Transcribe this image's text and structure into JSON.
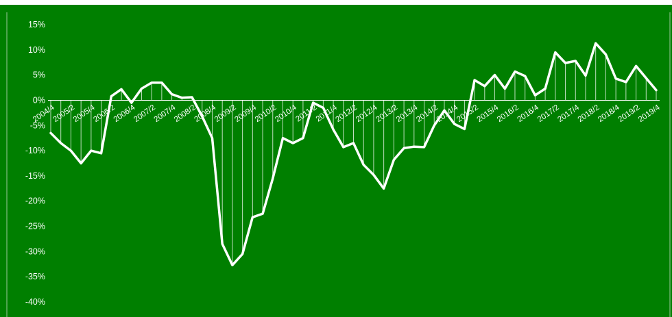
{
  "colors": {
    "background": "#007f00",
    "line": "#ffffff",
    "drop_lines": "#ffffff",
    "header_band": "#ffffff",
    "header_text": "#19a219"
  },
  "chart_data": {
    "type": "line",
    "title": "",
    "xlabel": "",
    "ylabel": "",
    "ylim": [
      -40,
      15
    ],
    "y_ticks": [
      "15%",
      "10%",
      "5%",
      "0%",
      "-5%",
      "-10%",
      "-15%",
      "-20%",
      "-25%",
      "-30%",
      "-35%",
      "-40%"
    ],
    "y_tick_values": [
      15,
      10,
      5,
      0,
      -5,
      -10,
      -15,
      -20,
      -25,
      -30,
      -35,
      -40
    ],
    "grid": false,
    "drop_lines": true,
    "x": [
      "2004/4",
      "2005/1",
      "2005/2",
      "2005/3",
      "2005/4",
      "2006/1",
      "2006/2",
      "2006/3",
      "2006/4",
      "2007/1",
      "2007/2",
      "2007/3",
      "2007/4",
      "2008/1",
      "2008/2",
      "2008/3",
      "2008/4",
      "2009/1",
      "2009/2",
      "2009/3",
      "2009/4",
      "2010/1",
      "2010/2",
      "2010/3",
      "2010/4",
      "2011/1",
      "2011/2",
      "2011/3",
      "2011/4",
      "2012/1",
      "2012/2",
      "2012/3",
      "2012/4",
      "2013/1",
      "2013/2",
      "2013/3",
      "2013/4",
      "2014/1",
      "2014/2",
      "2014/3",
      "2014/4",
      "2015/1",
      "2015/2",
      "2015/3",
      "2015/4",
      "2016/1",
      "2016/2",
      "2016/3",
      "2016/4",
      "2017/1",
      "2017/2",
      "2017/3",
      "2017/4",
      "2018/1",
      "2018/2",
      "2018/3",
      "2018/4",
      "2019/1",
      "2019/2",
      "2019/3",
      "2019/4"
    ],
    "x_tick_labels": [
      "2004/4",
      "2005/2",
      "2005/4",
      "2006/2",
      "2006/4",
      "2007/2",
      "2007/4",
      "2008/2",
      "2008/4",
      "2009/2",
      "2009/4",
      "2010/2",
      "2010/4",
      "2011/2",
      "2011/4",
      "2012/2",
      "2012/4",
      "2013/2",
      "2013/4",
      "2014/2",
      "2014/4",
      "2015/2",
      "2015/4",
      "2016/2",
      "2016/4",
      "2017/2",
      "2017/4",
      "2018/2",
      "2018/4",
      "2019/2",
      "2019/4"
    ],
    "series": [
      {
        "values": [
          -6.5,
          -8.5,
          -10,
          -12.5,
          -10,
          -10.5,
          0.8,
          2.2,
          -0.5,
          2.3,
          3.5,
          3.5,
          1.2,
          0.5,
          0.6,
          -3.2,
          -7.5,
          -28.5,
          -32.7,
          -30.5,
          -23.2,
          -22.5,
          -15.5,
          -7.5,
          -8.5,
          -7.5,
          -0.5,
          -1.5,
          -5.8,
          -9.3,
          -8.5,
          -12.8,
          -14.8,
          -17.5,
          -11.8,
          -9.5,
          -9.2,
          -9.3,
          -5,
          -2,
          -4.7,
          -5.7,
          4,
          2.8,
          5,
          2.3,
          5.7,
          4.8,
          1,
          2.3,
          9.5,
          7.4,
          7.8,
          4.9,
          11.3,
          9.1,
          4.3,
          3.6,
          6.8,
          4.4,
          2
        ]
      }
    ]
  }
}
